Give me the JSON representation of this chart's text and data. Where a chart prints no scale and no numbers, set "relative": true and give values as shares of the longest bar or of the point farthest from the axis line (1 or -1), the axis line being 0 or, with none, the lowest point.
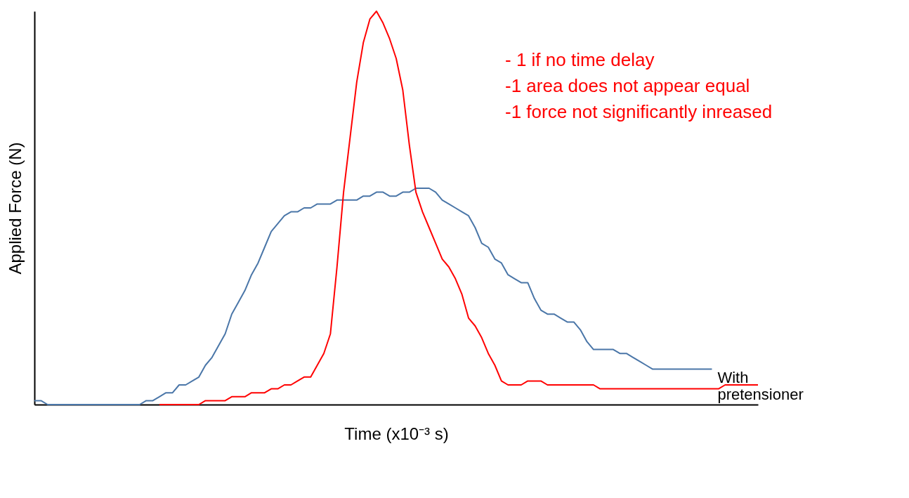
{
  "chart_data": {
    "type": "line",
    "relative": true,
    "xlabel": "Time (x10⁻³ s)",
    "ylabel": "Applied Force (N)",
    "categories": [
      null,
      null,
      null,
      null,
      null,
      null,
      null,
      null,
      null,
      null,
      null,
      null,
      null,
      null,
      null,
      null,
      null,
      null,
      null,
      null,
      null,
      null,
      null,
      null,
      null,
      null,
      null,
      null,
      null,
      null,
      null,
      null,
      null,
      null,
      null,
      null,
      null,
      null,
      null,
      null,
      null,
      null,
      null,
      null,
      null,
      null,
      null,
      null,
      null,
      null,
      null,
      null,
      null,
      null,
      null,
      null,
      null,
      null,
      null,
      null,
      null,
      null,
      null,
      null,
      null,
      null,
      null,
      null,
      null,
      null,
      null,
      null,
      null,
      null,
      null,
      null,
      null,
      null,
      null,
      null,
      null,
      null,
      null,
      null,
      null,
      null,
      null,
      null,
      null,
      null,
      null,
      null,
      null,
      null,
      null,
      null,
      null,
      null,
      null,
      null,
      null,
      null,
      null,
      null,
      null,
      null,
      null,
      null,
      null,
      null,
      null
    ],
    "series": [
      {
        "name": "With pretensioner",
        "color": "#4a76a8",
        "values": [
          0.01,
          0.01,
          0,
          0,
          0,
          0,
          0,
          0,
          0,
          0,
          0,
          0,
          0,
          0,
          0,
          0,
          0,
          0.01,
          0.01,
          0.02,
          0.03,
          0.03,
          0.05,
          0.05,
          0.06,
          0.07,
          0.1,
          0.12,
          0.15,
          0.18,
          0.23,
          0.26,
          0.29,
          0.33,
          0.36,
          0.4,
          0.44,
          0.46,
          0.48,
          0.49,
          0.49,
          0.5,
          0.5,
          0.51,
          0.51,
          0.51,
          0.52,
          0.52,
          0.52,
          0.52,
          0.53,
          0.53,
          0.54,
          0.54,
          0.53,
          0.53,
          0.54,
          0.54,
          0.55,
          0.55,
          0.55,
          0.54,
          0.52,
          0.51,
          0.5,
          0.49,
          0.48,
          0.45,
          0.41,
          0.4,
          0.37,
          0.36,
          0.33,
          0.32,
          0.31,
          0.31,
          0.27,
          0.24,
          0.23,
          0.23,
          0.22,
          0.21,
          0.21,
          0.19,
          0.16,
          0.14,
          0.14,
          0.14,
          0.14,
          0.13,
          0.13,
          0.12,
          0.11,
          0.1,
          0.09,
          0.09,
          0.09,
          0.09,
          0.09,
          0.09,
          0.09,
          0.09,
          0.09,
          0.09,
          null,
          null,
          null,
          null,
          null,
          null,
          null
        ]
      },
      {
        "color": "#ff0000",
        "values": [
          null,
          null,
          null,
          null,
          null,
          null,
          null,
          null,
          null,
          null,
          null,
          null,
          null,
          null,
          null,
          null,
          null,
          null,
          null,
          0,
          0,
          0,
          0,
          0,
          0,
          0,
          0.01,
          0.01,
          0.01,
          0.01,
          0.02,
          0.02,
          0.02,
          0.03,
          0.03,
          0.03,
          0.04,
          0.04,
          0.05,
          0.05,
          0.06,
          0.07,
          0.07,
          0.1,
          0.13,
          0.18,
          0.35,
          0.54,
          0.68,
          0.82,
          0.92,
          0.98,
          1,
          0.97,
          0.93,
          0.88,
          0.8,
          0.66,
          0.54,
          0.49,
          0.45,
          0.41,
          0.37,
          0.35,
          0.32,
          0.28,
          0.22,
          0.2,
          0.17,
          0.13,
          0.1,
          0.06,
          0.05,
          0.05,
          0.05,
          0.06,
          0.06,
          0.06,
          0.05,
          0.05,
          0.05,
          0.05,
          0.05,
          0.05,
          0.05,
          0.05,
          0.04,
          0.04,
          0.04,
          0.04,
          0.04,
          0.04,
          0.04,
          0.04,
          0.04,
          0.04,
          0.04,
          0.04,
          0.04,
          0.04,
          0.04,
          0.04,
          0.04,
          0.04,
          0.04,
          0.05,
          0.05,
          0.05,
          0.05,
          0.05,
          0.05
        ]
      }
    ],
    "annotations": [
      "- 1 if no time delay",
      "-1 area does not appear equal",
      "-1 force not significantly inreased"
    ],
    "grid": false
  }
}
